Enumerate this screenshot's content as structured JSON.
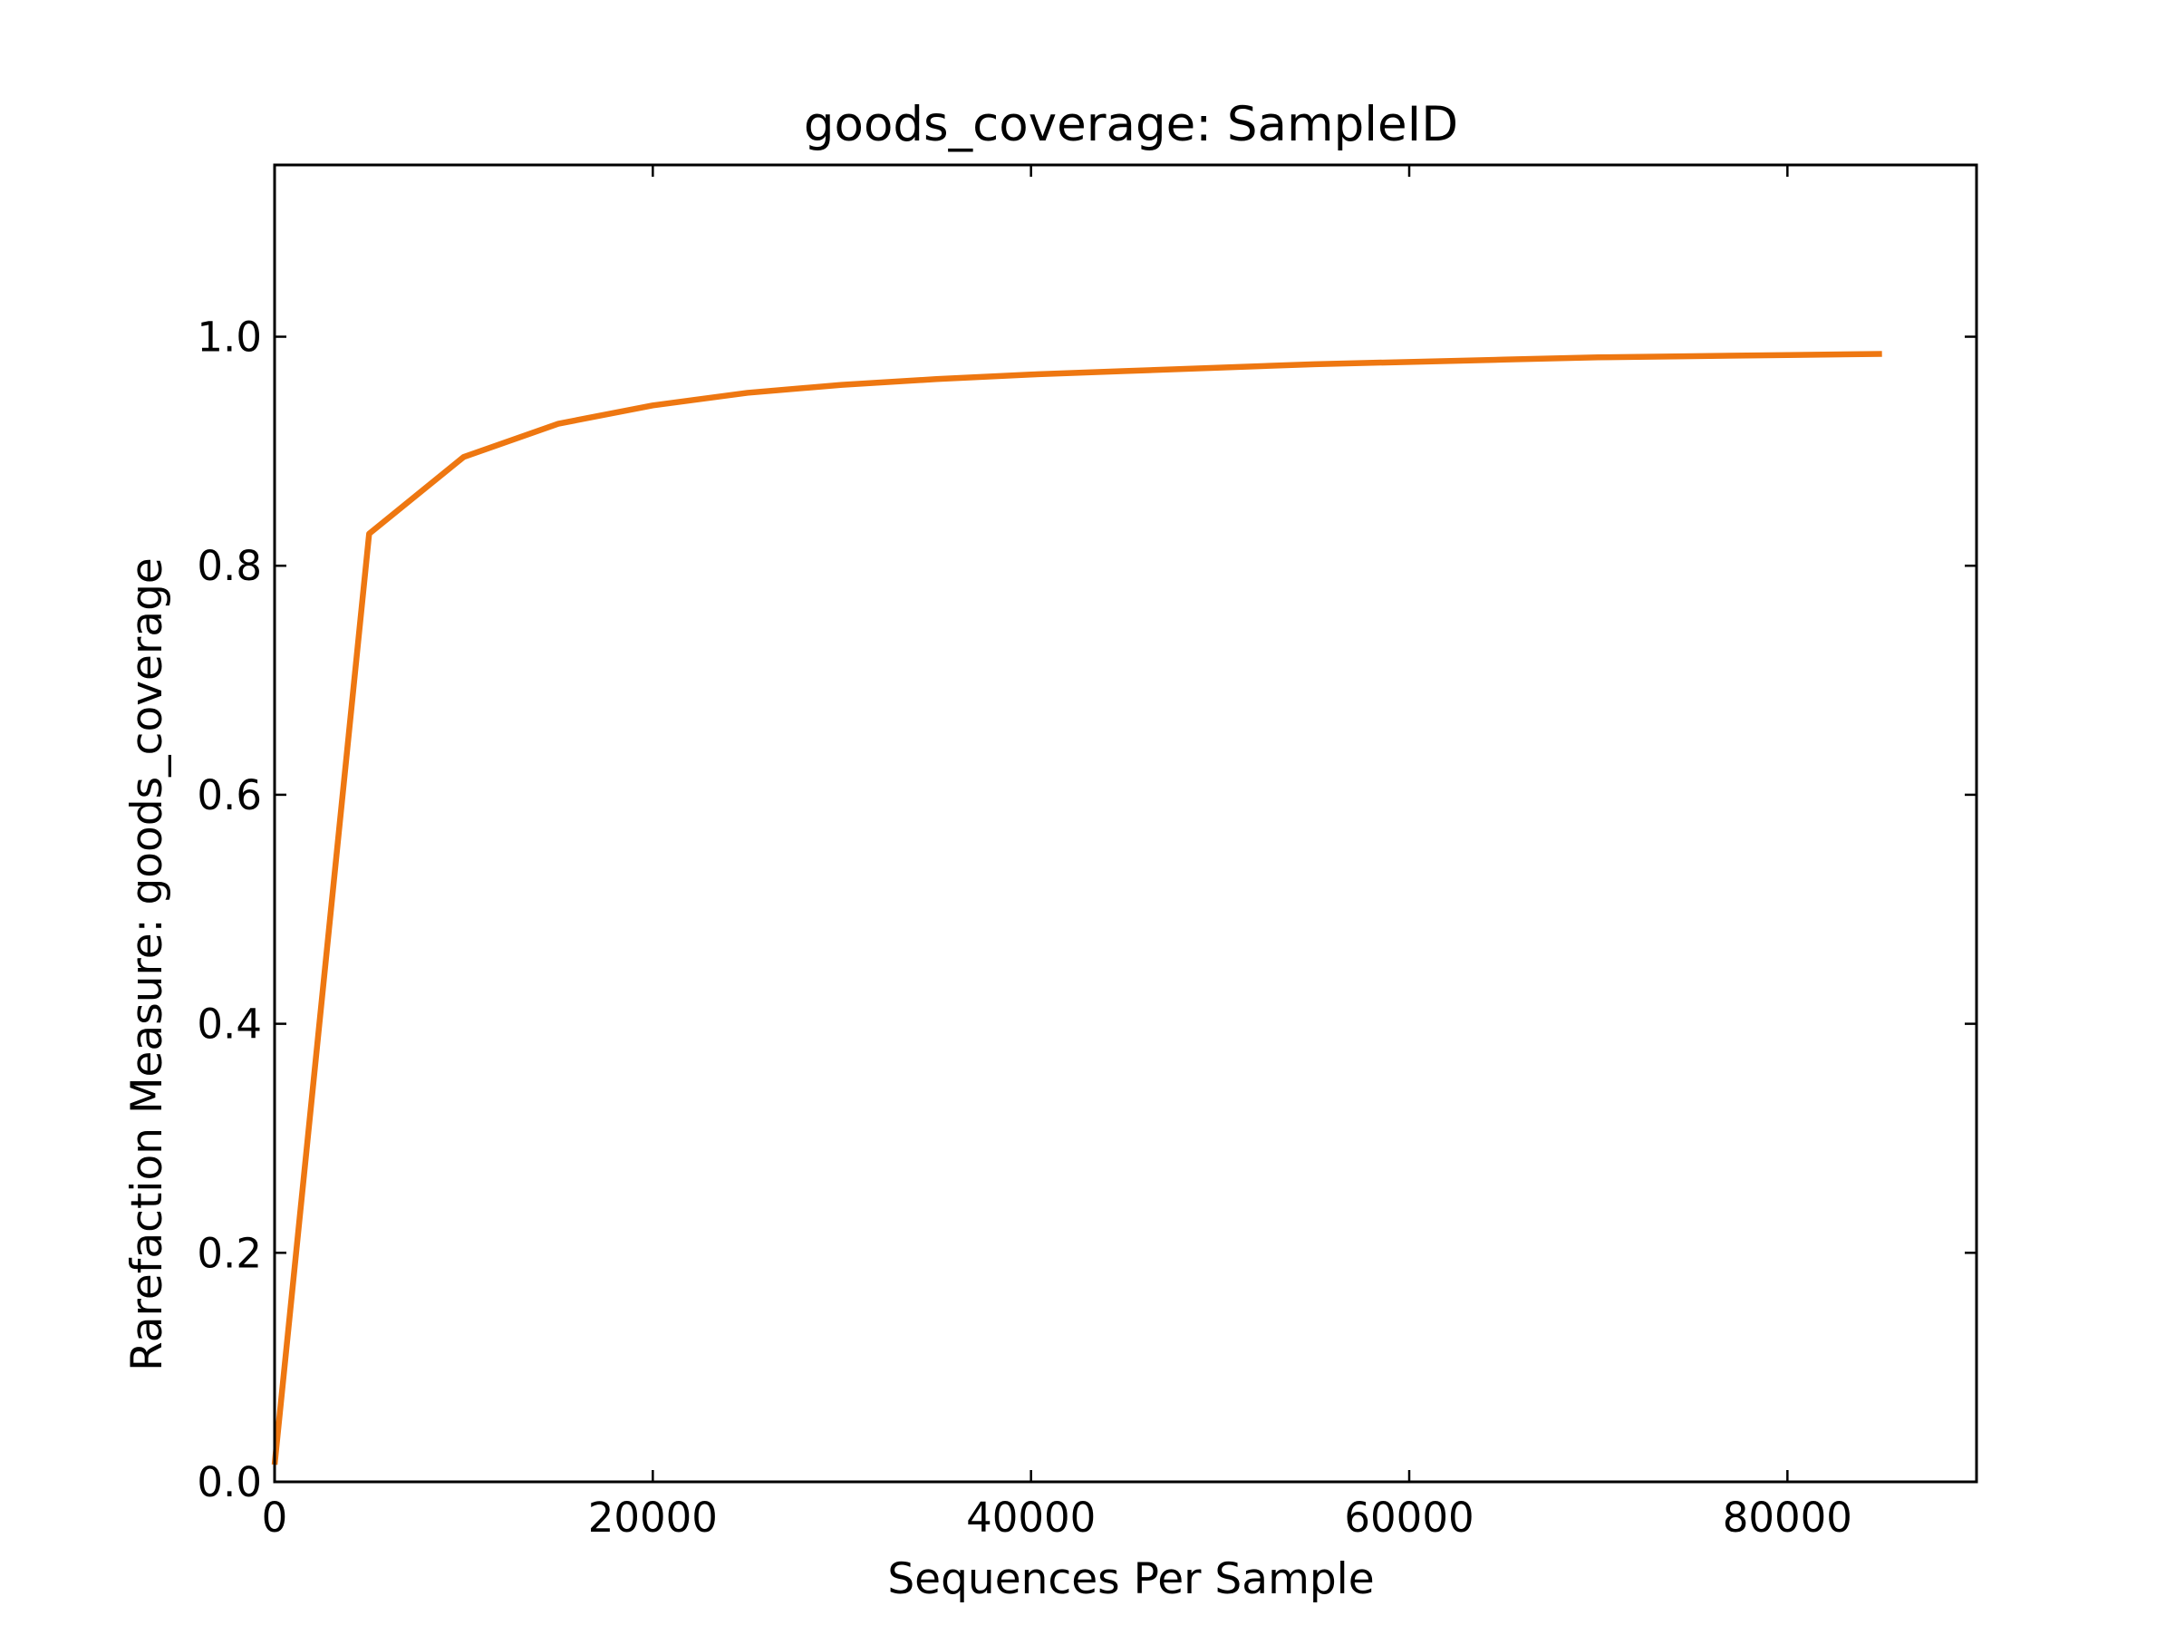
{
  "chart_data": {
    "type": "line",
    "title": "goods_coverage: SampleID",
    "xlabel": "Sequences Per Sample",
    "ylabel": "Rarefaction Measure: goods_coverage",
    "xlim": [
      0,
      90000
    ],
    "ylim": [
      0,
      1.15
    ],
    "xticks": [
      0,
      20000,
      40000,
      60000,
      80000
    ],
    "xtick_labels": [
      "0",
      "20000",
      "40000",
      "60000",
      "80000"
    ],
    "yticks": [
      0.0,
      0.2,
      0.4,
      0.6,
      0.8,
      1.0
    ],
    "ytick_labels": [
      "0.0",
      "0.2",
      "0.4",
      "0.6",
      "0.8",
      "1.0"
    ],
    "grid": false,
    "series": [
      {
        "color": "#ee7711",
        "x": [
          0,
          5000,
          10000,
          15000,
          20000,
          25000,
          30000,
          35000,
          40000,
          45000,
          50000,
          55000,
          60000,
          65000,
          70000,
          75000,
          80000,
          85000
        ],
        "y": [
          0.015,
          0.828,
          0.895,
          0.924,
          0.94,
          0.951,
          0.958,
          0.963,
          0.967,
          0.97,
          0.973,
          0.976,
          0.978,
          0.98,
          0.982,
          0.983,
          0.984,
          0.985
        ]
      }
    ]
  }
}
